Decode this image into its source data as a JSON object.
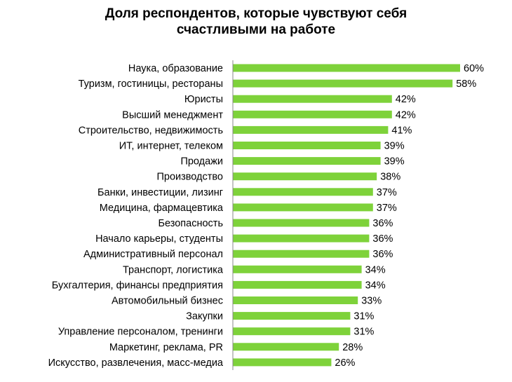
{
  "chart_data": {
    "type": "bar",
    "orientation": "horizontal",
    "title_lines": [
      "Доля респондентов, которые чувствуют себя",
      "счастливыми на работе"
    ],
    "categories": [
      "Наука, образование",
      "Туризм, гостиницы, рестораны",
      "Юристы",
      "Высший менеджмент",
      "Строительство, недвижимость",
      "ИТ, интернет, телеком",
      "Продажи",
      "Производство",
      "Банки, инвестиции, лизинг",
      "Медицина, фармацевтика",
      "Безопасность",
      "Начало карьеры, студенты",
      "Административный персонал",
      "Транспорт, логистика",
      "Бухгалтерия, финансы предприятия",
      "Автомобильный бизнес",
      "Закупки",
      "Управление персоналом, тренинги",
      "Маркетинг, реклама, PR",
      "Искусство, развлечения, масс-медиа"
    ],
    "values": [
      60,
      58,
      42,
      42,
      41,
      39,
      39,
      38,
      37,
      37,
      36,
      36,
      36,
      34,
      34,
      33,
      31,
      31,
      28,
      26
    ],
    "value_labels": [
      "60%",
      "58%",
      "42%",
      "42%",
      "41%",
      "39%",
      "39%",
      "38%",
      "37%",
      "37%",
      "36%",
      "36%",
      "36%",
      "34%",
      "34%",
      "33%",
      "31%",
      "31%",
      "28%",
      "26%"
    ],
    "xlim": [
      0,
      60
    ],
    "grid": false,
    "legend": "none",
    "bar_color": "#7ed23a",
    "axis_color": "#888888"
  }
}
